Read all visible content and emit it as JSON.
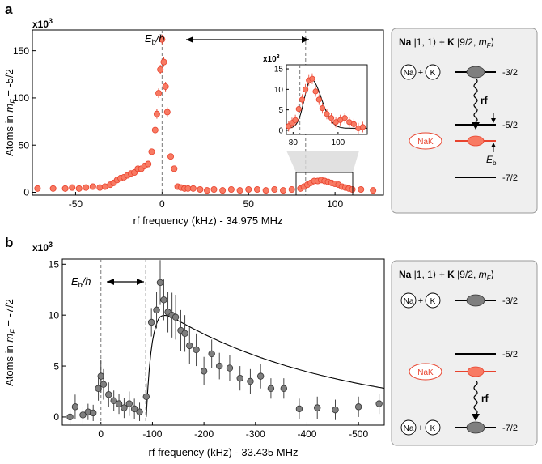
{
  "colors": {
    "red": "#e8432e",
    "red_fill": "#f87a63",
    "gray_fill": "#7f7f7f",
    "panel_bg": "#efefef",
    "dash": "#7a7a7a"
  },
  "panels": {
    "a": {
      "label": "a",
      "multiplier": "x10",
      "multiplier_exp": "3",
      "ylabel_pre": "Atoms in ",
      "ylabel_m": "m",
      "ylabel_sub": "F",
      "ylabel_post": " = -5/2",
      "xlabel": "rf frequency (kHz) - 34.975 MHz",
      "eb_E": "E",
      "eb_sub": "b",
      "eb_post": "/h",
      "inset_multiplier": "x10",
      "inset_multiplier_exp": "3"
    },
    "b": {
      "label": "b",
      "multiplier": "x10",
      "multiplier_exp": "3",
      "ylabel_pre": "Atoms in ",
      "ylabel_m": "m",
      "ylabel_sub": "F",
      "ylabel_post": " = -7/2",
      "xlabel": "rf frequency (kHz) - 33.435 MHz",
      "eb_E": "E",
      "eb_sub": "b",
      "eb_post": "/h"
    }
  },
  "diagram_a": {
    "title_na": "Na",
    "title_state1": " |1, 1⟩ + ",
    "title_k": "K",
    "title_state2": " |9/2, ",
    "title_m": "m",
    "title_sub": "F",
    "title_end": "⟩",
    "atom_na": "Na",
    "atom_k": "K",
    "plus": "+",
    "molecule": "NaK",
    "rf": "rf",
    "level_top": "-3/2",
    "level_mid": "-5/2",
    "level_bot": "-7/2",
    "eb_E": "E",
    "eb_sub": "b"
  },
  "diagram_b": {
    "title_na": "Na",
    "title_state1": " |1, 1⟩ + ",
    "title_k": "K",
    "title_state2": " |9/2, ",
    "title_m": "m",
    "title_sub": "F",
    "title_end": "⟩",
    "atom_na": "Na",
    "atom_k": "K",
    "plus": "+",
    "molecule": "NaK",
    "rf": "rf",
    "level_top": "-3/2",
    "level_mid": "-5/2",
    "level_bot": "-7/2"
  },
  "chart_data": [
    {
      "type": "scatter",
      "title": "",
      "xlabel": "rf frequency (kHz) - 34.975 MHz",
      "ylabel": "Atoms in m_F = -5/2",
      "y_multiplier": "x10^3",
      "xlim": [
        -75,
        128
      ],
      "ylim": [
        -3,
        172
      ],
      "xticks": [
        -50,
        0,
        50,
        100
      ],
      "yticks": [
        0,
        50,
        100,
        150
      ],
      "marker_color": "red",
      "reference_lines": [
        0,
        83
      ],
      "annotation": "Eb/h",
      "x": [
        -72,
        -63,
        -56,
        -52,
        -48,
        -44,
        -40,
        -36,
        -33,
        -30,
        -28,
        -26,
        -24,
        -22,
        -20,
        -18,
        -16,
        -14,
        -12,
        -10,
        -8,
        -6,
        -4,
        -3,
        -2,
        -1,
        0,
        1,
        2,
        3,
        5,
        7,
        9,
        11,
        13,
        15,
        18,
        22,
        26,
        30,
        35,
        40,
        45,
        50,
        55,
        60,
        65,
        70,
        75,
        80,
        82,
        84,
        86,
        88,
        90,
        92,
        94,
        96,
        98,
        100,
        102,
        104,
        106,
        108,
        110,
        115,
        122
      ],
      "y": [
        4,
        4,
        4,
        5,
        4,
        5,
        6,
        5,
        6,
        8,
        10,
        13,
        15,
        16,
        18,
        20,
        21,
        25,
        25,
        28,
        30,
        43,
        66,
        83,
        105,
        130,
        162,
        138,
        112,
        85,
        38,
        25,
        6,
        5,
        4,
        4,
        4,
        3,
        2,
        3,
        2,
        3,
        2,
        3,
        3,
        2,
        3,
        2,
        3,
        4,
        6,
        8,
        10,
        12,
        12,
        13,
        12,
        11,
        10,
        9,
        8,
        6,
        5,
        4,
        3,
        3,
        2
      ],
      "inset": {
        "xlim": [
          77,
          113
        ],
        "ylim": [
          -1,
          16
        ],
        "xticks": [
          80,
          100
        ],
        "yticks": [
          0,
          5,
          10,
          15
        ],
        "y_multiplier": "x10^3",
        "reference_line": 83,
        "x": [
          78,
          79.5,
          81,
          82.5,
          84,
          85.5,
          87,
          88.5,
          90,
          91.5,
          93,
          95,
          97,
          99,
          101,
          103,
          105,
          107,
          109,
          111
        ],
        "y": [
          1.0,
          1.8,
          2.5,
          5.2,
          7.5,
          10.0,
          12.2,
          12.6,
          9.5,
          7.5,
          5.4,
          4.0,
          3.0,
          2.0,
          2.5,
          3.0,
          2.0,
          1.5,
          0.5,
          0.8
        ]
      }
    },
    {
      "type": "scatter",
      "title": "",
      "xlabel": "rf frequency (kHz) - 33.435 MHz",
      "ylabel": "Atoms in m_F = -7/2",
      "y_multiplier": "x10^3",
      "x_reversed": true,
      "xlim": [
        75,
        -550
      ],
      "ylim": [
        -0.8,
        15.5
      ],
      "xticks": [
        0,
        -100,
        -200,
        -300,
        -400,
        -500
      ],
      "yticks": [
        0,
        5,
        10,
        15
      ],
      "marker_color": "gray",
      "reference_lines": [
        0,
        -87
      ],
      "annotation": "Eb/h",
      "x": [
        60,
        50,
        35,
        25,
        15,
        5,
        0,
        -5,
        -15,
        -25,
        -35,
        -45,
        -55,
        -65,
        -75,
        -88,
        -98,
        -108,
        -115,
        -122,
        -130,
        -138,
        -145,
        -155,
        -163,
        -172,
        -185,
        -200,
        -215,
        -230,
        -250,
        -270,
        -290,
        -310,
        -330,
        -355,
        -385,
        -420,
        -455,
        -500,
        -540
      ],
      "y": [
        0,
        1,
        0.2,
        0.5,
        0.4,
        2.8,
        4.0,
        3.2,
        2.2,
        1.6,
        1.3,
        0.9,
        1.3,
        0.8,
        0.5,
        2.0,
        9.3,
        10.5,
        13.2,
        11.5,
        10.3,
        10.0,
        9.8,
        8.5,
        8.2,
        7.0,
        6.6,
        4.5,
        6.2,
        5.0,
        4.8,
        3.8,
        3.5,
        4.0,
        2.8,
        2.8,
        0.8,
        0.9,
        0.7,
        1.0,
        1.3
      ],
      "y_err": [
        0.7,
        1.2,
        0.8,
        0.8,
        0.8,
        1.2,
        1.6,
        1.5,
        1.2,
        1.0,
        1.0,
        1.0,
        1.2,
        1.0,
        0.9,
        1.3,
        1.4,
        1.8,
        2.2,
        2.0,
        2.0,
        2.2,
        2.2,
        2.0,
        1.8,
        1.8,
        1.6,
        1.4,
        1.4,
        1.3,
        1.3,
        1.2,
        1.2,
        1.2,
        1.0,
        1.0,
        1.0,
        1.1,
        1.0,
        1.0,
        1.0
      ]
    }
  ]
}
